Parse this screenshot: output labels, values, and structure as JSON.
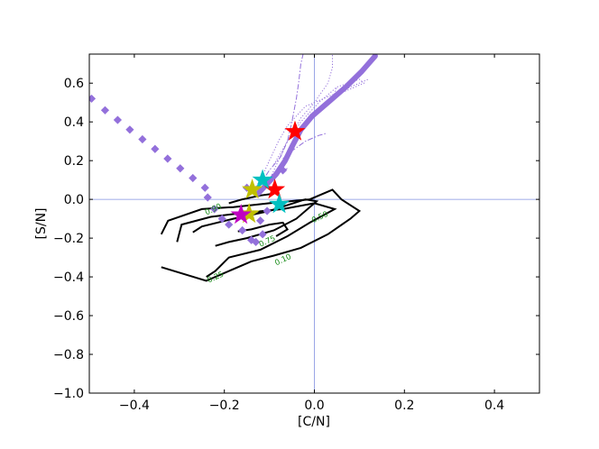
{
  "chart_data": {
    "type": "scatter",
    "title": "",
    "xlabel": "[C/N]",
    "ylabel": "[S/N]",
    "xlim": [
      -0.5,
      0.5
    ],
    "ylim": [
      -1.0,
      0.75
    ],
    "x_ticks": [
      -0.4,
      -0.2,
      0.0,
      0.2,
      0.4
    ],
    "x_tick_labels": [
      "−0.4",
      "−0.2",
      "0.0",
      "0.2",
      "0.4"
    ],
    "y_ticks": [
      -1.0,
      -0.8,
      -0.6,
      -0.4,
      -0.2,
      0.0,
      0.2,
      0.4,
      0.6
    ],
    "y_tick_labels": [
      "−1.0",
      "−0.8",
      "−0.6",
      "−0.4",
      "−0.2",
      "0.0",
      "0.2",
      "0.4",
      "0.6"
    ],
    "reference_lines": {
      "x": 0.0,
      "y": 0.0,
      "color": "#8090e0"
    },
    "grid": false,
    "legend": "none",
    "colors": {
      "track": "#9370db",
      "contour": "#000000",
      "contour_label": "#138a13"
    },
    "diamond_series": {
      "color": "#9370db",
      "points": [
        [
          -0.495,
          0.52
        ],
        [
          -0.465,
          0.46
        ],
        [
          -0.437,
          0.41
        ],
        [
          -0.41,
          0.36
        ],
        [
          -0.382,
          0.31
        ],
        [
          -0.354,
          0.26
        ],
        [
          -0.326,
          0.21
        ],
        [
          -0.298,
          0.16
        ],
        [
          -0.27,
          0.11
        ],
        [
          -0.243,
          0.06
        ],
        [
          -0.237,
          0.01
        ],
        [
          -0.222,
          -0.05
        ],
        [
          -0.205,
          -0.1
        ],
        [
          -0.19,
          -0.13
        ],
        [
          -0.16,
          -0.16
        ],
        [
          -0.14,
          -0.21
        ],
        [
          -0.13,
          -0.22
        ],
        [
          -0.115,
          -0.18
        ],
        [
          -0.12,
          -0.11
        ],
        [
          -0.105,
          -0.06
        ],
        [
          -0.15,
          0.06
        ],
        [
          -0.07,
          0.15
        ]
      ]
    },
    "thick_track": [
      [
        -0.125,
        0.03
      ],
      [
        -0.105,
        0.08
      ],
      [
        -0.085,
        0.13
      ],
      [
        -0.065,
        0.2
      ],
      [
        -0.048,
        0.28
      ],
      [
        -0.03,
        0.36
      ],
      [
        -0.005,
        0.43
      ],
      [
        0.03,
        0.5
      ],
      [
        0.07,
        0.58
      ],
      [
        0.105,
        0.66
      ],
      [
        0.135,
        0.74
      ]
    ],
    "thin_tracks": [
      {
        "style": "dashdot",
        "points": [
          [
            -0.12,
            0.08
          ],
          [
            -0.1,
            0.15
          ],
          [
            -0.075,
            0.22
          ],
          [
            -0.06,
            0.3
          ],
          [
            -0.05,
            0.4
          ],
          [
            -0.04,
            0.52
          ],
          [
            -0.035,
            0.6
          ],
          [
            -0.03,
            0.7
          ],
          [
            -0.025,
            0.75
          ]
        ]
      },
      {
        "style": "dotted",
        "points": [
          [
            -0.09,
            0.18
          ],
          [
            -0.06,
            0.3
          ],
          [
            -0.03,
            0.4
          ],
          [
            0.01,
            0.5
          ],
          [
            0.05,
            0.58
          ],
          [
            0.1,
            0.62
          ],
          [
            0.11,
            0.6
          ],
          [
            0.06,
            0.55
          ],
          [
            0.04,
            0.52
          ],
          [
            0.05,
            0.58
          ]
        ]
      },
      {
        "style": "dotted",
        "points": [
          [
            -0.1,
            0.1
          ],
          [
            -0.08,
            0.2
          ],
          [
            -0.06,
            0.3
          ],
          [
            -0.03,
            0.42
          ],
          [
            0.0,
            0.5
          ],
          [
            0.03,
            0.6
          ],
          [
            0.04,
            0.68
          ],
          [
            0.04,
            0.75
          ]
        ]
      },
      {
        "style": "dashdot",
        "points": [
          [
            -0.07,
            0.21
          ],
          [
            -0.05,
            0.25
          ],
          [
            -0.02,
            0.3
          ],
          [
            0.01,
            0.33
          ],
          [
            0.025,
            0.34
          ]
        ]
      },
      {
        "style": "dashdot",
        "points": [
          [
            -0.07,
            0.15
          ],
          [
            -0.06,
            0.16
          ]
        ]
      },
      {
        "style": "dotted",
        "points": [
          [
            -0.14,
            0.03
          ],
          [
            -0.12,
            0.1
          ],
          [
            -0.1,
            0.2
          ],
          [
            -0.08,
            0.3
          ],
          [
            -0.06,
            0.38
          ],
          [
            -0.02,
            0.48
          ],
          [
            0.05,
            0.55
          ],
          [
            0.1,
            0.6
          ],
          [
            0.12,
            0.62
          ]
        ]
      }
    ],
    "stars": [
      {
        "color": "#ff0000",
        "x": -0.043,
        "y": 0.35
      },
      {
        "color": "#ff0000",
        "x": -0.088,
        "y": 0.05
      },
      {
        "color": "#00c0c0",
        "x": -0.115,
        "y": 0.1
      },
      {
        "color": "#00c0c0",
        "x": -0.078,
        "y": -0.025
      },
      {
        "color": "#c0c000",
        "x": -0.138,
        "y": 0.05
      },
      {
        "color": "#c0c000",
        "x": -0.145,
        "y": -0.075
      },
      {
        "color": "#c000c0",
        "x": -0.163,
        "y": -0.08
      }
    ],
    "contours": [
      {
        "level": "0.10",
        "label_at": [
          -0.07,
          -0.31
        ],
        "points": [
          [
            -0.34,
            -0.18
          ],
          [
            -0.325,
            -0.11
          ],
          [
            -0.25,
            -0.05
          ],
          [
            -0.18,
            -0.04
          ],
          [
            -0.1,
            -0.02
          ],
          [
            -0.01,
            0.0
          ],
          [
            0.04,
            0.05
          ],
          [
            0.06,
            0.0
          ],
          [
            0.1,
            -0.06
          ],
          [
            0.08,
            -0.1
          ],
          [
            0.03,
            -0.18
          ],
          [
            -0.03,
            -0.25
          ],
          [
            -0.09,
            -0.29
          ],
          [
            -0.14,
            -0.32
          ],
          [
            -0.2,
            -0.38
          ],
          [
            -0.24,
            -0.42
          ],
          [
            -0.34,
            -0.35
          ]
        ]
      },
      {
        "level": "0.25",
        "label_at": [
          -0.22,
          -0.4
        ],
        "points": [
          [
            -0.305,
            -0.22
          ],
          [
            -0.295,
            -0.13
          ],
          [
            -0.23,
            -0.09
          ],
          [
            -0.16,
            -0.07
          ],
          [
            -0.07,
            -0.05
          ],
          [
            0.0,
            -0.02
          ],
          [
            0.045,
            -0.05
          ],
          [
            -0.01,
            -0.12
          ],
          [
            -0.06,
            -0.19
          ],
          [
            -0.12,
            -0.26
          ],
          [
            -0.19,
            -0.3
          ],
          [
            -0.22,
            -0.37
          ],
          [
            -0.24,
            -0.4
          ]
        ]
      },
      {
        "level": "0.50",
        "label_at": [
          0.012,
          -0.09
        ],
        "points": [
          [
            -0.27,
            -0.17
          ],
          [
            -0.25,
            -0.14
          ],
          [
            -0.18,
            -0.1
          ],
          [
            -0.1,
            -0.06
          ],
          [
            -0.02,
            0.0
          ],
          [
            0.005,
            -0.01
          ],
          [
            -0.04,
            -0.1
          ],
          [
            -0.09,
            -0.16
          ],
          [
            -0.15,
            -0.2
          ],
          [
            -0.19,
            -0.22
          ],
          [
            -0.22,
            -0.24
          ]
        ]
      },
      {
        "level": "0.75",
        "label_at": [
          -0.105,
          -0.215
        ],
        "points": [
          [
            -0.17,
            -0.165
          ],
          [
            -0.14,
            -0.155
          ],
          [
            -0.1,
            -0.13
          ],
          [
            -0.07,
            -0.12
          ],
          [
            -0.06,
            -0.155
          ],
          [
            -0.085,
            -0.19
          ]
        ]
      },
      {
        "level": "0.90",
        "label_at": [
          -0.225,
          -0.05
        ],
        "points": [
          [
            -0.19,
            -0.02
          ],
          [
            -0.16,
            0.0
          ],
          [
            -0.12,
            0.02
          ],
          [
            -0.09,
            0.03
          ]
        ]
      }
    ]
  }
}
